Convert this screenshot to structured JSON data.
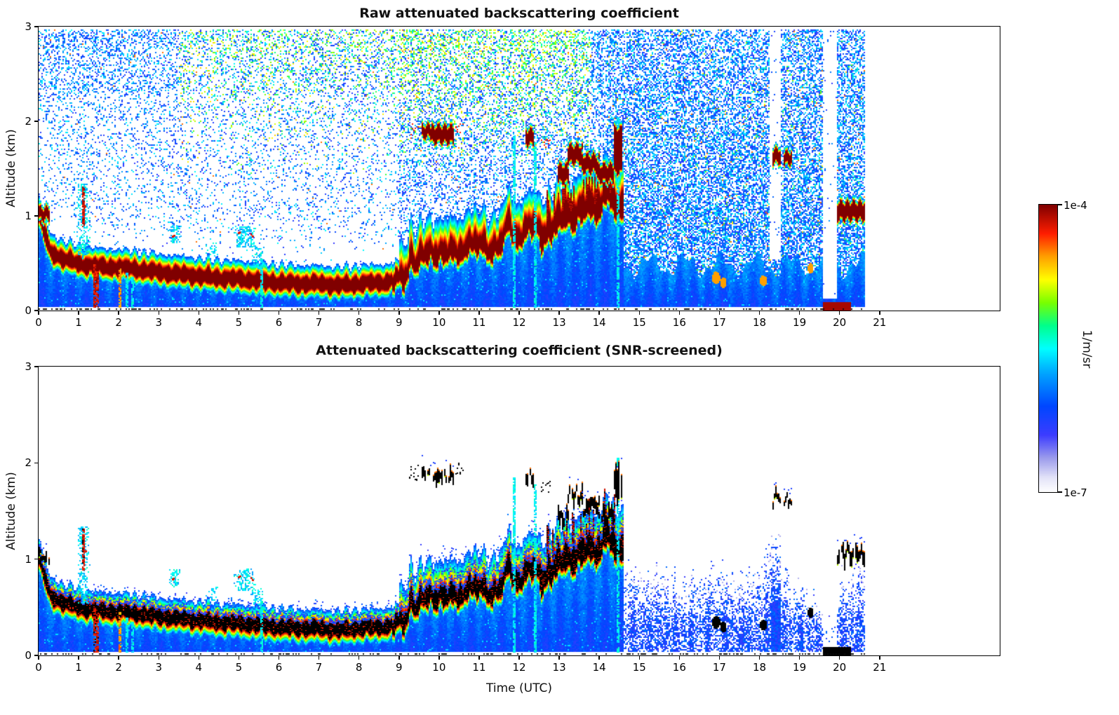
{
  "colorbar": {
    "max_label": "1e-4",
    "min_label": "1e-7",
    "unit": "1/m/sr",
    "vmin": 1e-07,
    "vmax": 0.0001,
    "scale": "log"
  },
  "chart_data": {
    "type": "heatmap",
    "panels": [
      {
        "title": "Raw attenuated backscattering coefficient",
        "ylabel": "Altitude (km)",
        "xlabel": "",
        "screened": false,
        "xlim": [
          0,
          24
        ],
        "ylim": [
          0,
          3
        ],
        "xticks": [
          0,
          1,
          2,
          3,
          4,
          5,
          6,
          7,
          8,
          9,
          10,
          11,
          12,
          13,
          14,
          15,
          16,
          17,
          18,
          19,
          20,
          21
        ],
        "yticks": [
          0,
          1,
          2,
          3
        ],
        "colorscale": {
          "min": "1e-7",
          "max": "1e-4",
          "units": "1/m/sr",
          "scale": "log"
        }
      },
      {
        "title": "Attenuated backscattering coefficient (SNR-screened)",
        "ylabel": "Altitude (km)",
        "xlabel": "Time (UTC)",
        "screened": true,
        "xlim": [
          0,
          24
        ],
        "ylim": [
          0,
          3
        ],
        "xticks": [
          0,
          1,
          2,
          3,
          4,
          5,
          6,
          7,
          8,
          9,
          10,
          11,
          12,
          13,
          14,
          15,
          16,
          17,
          18,
          19,
          20,
          21
        ],
        "yticks": [
          0,
          1,
          2,
          3
        ],
        "colorscale": {
          "min": "1e-7",
          "max": "1e-4",
          "units": "1/m/sr",
          "scale": "log"
        }
      }
    ],
    "time_coverage_utc": [
      0,
      20.65
    ],
    "colormap": [
      [
        0.0,
        "#ffffff"
      ],
      [
        0.05,
        "#e4e4f8"
      ],
      [
        0.12,
        "#9b9bec"
      ],
      [
        0.2,
        "#3c3cff"
      ],
      [
        0.3,
        "#0046ff"
      ],
      [
        0.42,
        "#00aaff"
      ],
      [
        0.5,
        "#00ffff"
      ],
      [
        0.58,
        "#00ff8c"
      ],
      [
        0.66,
        "#78ff00"
      ],
      [
        0.74,
        "#ffff00"
      ],
      [
        0.82,
        "#ffa000"
      ],
      [
        0.9,
        "#ff1e00"
      ],
      [
        1.0,
        "#800000"
      ]
    ],
    "features": {
      "boundary_layer": {
        "t": [
          0,
          0.15,
          0.3,
          0.6,
          1.0,
          1.5,
          2.0,
          2.5,
          3.0,
          3.5,
          4.0,
          4.5,
          5.0,
          5.5,
          6.0,
          6.5,
          7.0,
          7.5,
          8.0,
          8.5,
          9.0,
          9.3,
          9.6,
          10.0,
          10.3,
          10.6,
          11.0,
          11.3,
          11.6,
          12.0,
          12.3,
          12.6,
          13.0,
          13.4,
          13.8,
          14.2,
          14.55
        ],
        "z": [
          1.05,
          0.82,
          0.62,
          0.56,
          0.5,
          0.47,
          0.46,
          0.44,
          0.41,
          0.39,
          0.37,
          0.35,
          0.34,
          0.32,
          0.3,
          0.29,
          0.29,
          0.27,
          0.29,
          0.3,
          0.32,
          0.45,
          0.58,
          0.65,
          0.6,
          0.65,
          0.7,
          0.67,
          0.73,
          0.82,
          0.9,
          0.82,
          0.95,
          1.05,
          1.1,
          1.15,
          1.1
        ]
      },
      "clouds": [
        {
          "t0": 0.0,
          "t1": 0.28,
          "z": 1.03,
          "th": 0.1
        },
        {
          "t0": 9.55,
          "t1": 9.8,
          "z": 1.9,
          "th": 0.1
        },
        {
          "t0": 9.82,
          "t1": 10.38,
          "z": 1.87,
          "th": 0.15
        },
        {
          "t0": 12.15,
          "t1": 12.38,
          "z": 1.84,
          "th": 0.13
        },
        {
          "t0": 12.95,
          "t1": 13.25,
          "z": 1.45,
          "th": 0.16
        },
        {
          "t0": 13.2,
          "t1": 13.6,
          "z": 1.66,
          "th": 0.16
        },
        {
          "t0": 13.55,
          "t1": 14.0,
          "z": 1.56,
          "th": 0.15
        },
        {
          "t0": 13.95,
          "t1": 14.35,
          "z": 1.46,
          "th": 0.15
        },
        {
          "t0": 14.35,
          "t1": 14.56,
          "z": 1.7,
          "th": 0.45
        },
        {
          "t0": 18.32,
          "t1": 18.52,
          "z": 1.64,
          "th": 0.12
        },
        {
          "t0": 18.6,
          "t1": 18.8,
          "z": 1.62,
          "th": 0.1
        },
        {
          "t0": 19.95,
          "t1": 20.62,
          "z": 1.06,
          "th": 0.16
        }
      ],
      "speckle_clouds": [
        {
          "t0": 9.25,
          "t1": 9.5,
          "z": 1.9,
          "spread": 0.08
        },
        {
          "t0": 10.42,
          "t1": 10.62,
          "z": 1.94,
          "spread": 0.06
        },
        {
          "t0": 12.55,
          "t1": 12.78,
          "z": 1.77,
          "spread": 0.07
        }
      ],
      "streaks": [
        {
          "t": 1.4,
          "z0": 0,
          "z1": 0.5,
          "kind": "red"
        },
        {
          "t": 1.48,
          "z0": 0,
          "z1": 0.42,
          "kind": "red"
        },
        {
          "t": 2.03,
          "z0": 0,
          "z1": 0.45,
          "kind": "orange"
        },
        {
          "t": 2.2,
          "z0": 0,
          "z1": 0.4,
          "kind": "cyan"
        },
        {
          "t": 2.34,
          "z0": 0,
          "z1": 0.36,
          "kind": "cyan"
        },
        {
          "t": 5.57,
          "z0": 0,
          "z1": 0.55,
          "kind": "cyan"
        },
        {
          "t": 11.88,
          "z0": 0,
          "z1": 1.85,
          "kind": "cyan"
        },
        {
          "t": 12.42,
          "z0": 0,
          "z1": 1.78,
          "kind": "cyan"
        },
        {
          "t": 14.47,
          "z0": 0,
          "z1": 2.05,
          "kind": "cyan"
        },
        {
          "t": 1.12,
          "z0": 0.85,
          "z1": 1.32,
          "kind": "red"
        }
      ],
      "gaps": [
        {
          "t0": 18.25,
          "t1": 18.55,
          "z0": 0.55,
          "z1": 3
        },
        {
          "t0": 19.58,
          "t1": 19.95,
          "z0": 0.12,
          "z1": 3
        }
      ],
      "haze_top": {
        "t": [
          14.6,
          15,
          15.5,
          16,
          16.5,
          17,
          17.5,
          18,
          18.3,
          18.55,
          19,
          19.3,
          19.58,
          19.95,
          20.1,
          20.4,
          20.65
        ],
        "z": [
          1.2,
          1.0,
          0.95,
          0.9,
          0.95,
          1.05,
          0.95,
          1.0,
          1.35,
          1.0,
          0.85,
          0.7,
          0.5,
          0.8,
          0.95,
          1.1,
          1.2
        ]
      },
      "haze_gap": [
        19.58,
        19.95
      ],
      "dense_haze_column": {
        "t0": 18.28,
        "t1": 18.55,
        "ztop": 1.35
      },
      "aerosol_spots": [
        {
          "t": 16.92,
          "z": 0.35,
          "rt": 0.1,
          "rz": 0.06
        },
        {
          "t": 17.1,
          "z": 0.3,
          "rt": 0.08,
          "rz": 0.05
        },
        {
          "t": 18.1,
          "z": 0.32,
          "rt": 0.09,
          "rz": 0.05
        },
        {
          "t": 19.28,
          "z": 0.45,
          "rt": 0.07,
          "rz": 0.05
        }
      ],
      "cyan_blobs": [
        {
          "t0": 0.95,
          "t1": 1.3,
          "z0": 0.55,
          "z1": 1.35,
          "p": 0.5
        },
        {
          "t0": 3.25,
          "t1": 3.55,
          "z0": 0.72,
          "z1": 0.9,
          "p": 0.6
        },
        {
          "t0": 4.15,
          "t1": 4.5,
          "z0": 0.58,
          "z1": 0.72,
          "p": 0.35
        },
        {
          "t0": 4.85,
          "t1": 5.45,
          "z0": 0.68,
          "z1": 0.9,
          "p": 0.55
        },
        {
          "t0": 5.3,
          "t1": 5.65,
          "z0": 0.45,
          "z1": 0.7,
          "p": 0.5
        }
      ],
      "hot_dots": [
        {
          "t": 3.38,
          "z": 0.8
        },
        {
          "t": 5.02,
          "z": 0.82
        },
        {
          "t": 5.32,
          "z": 0.8
        },
        {
          "t": 1.15,
          "z": 1.1
        }
      ],
      "surface_fog": {
        "t0": 19.6,
        "t1": 20.28,
        "ztop": 0.09
      }
    }
  }
}
